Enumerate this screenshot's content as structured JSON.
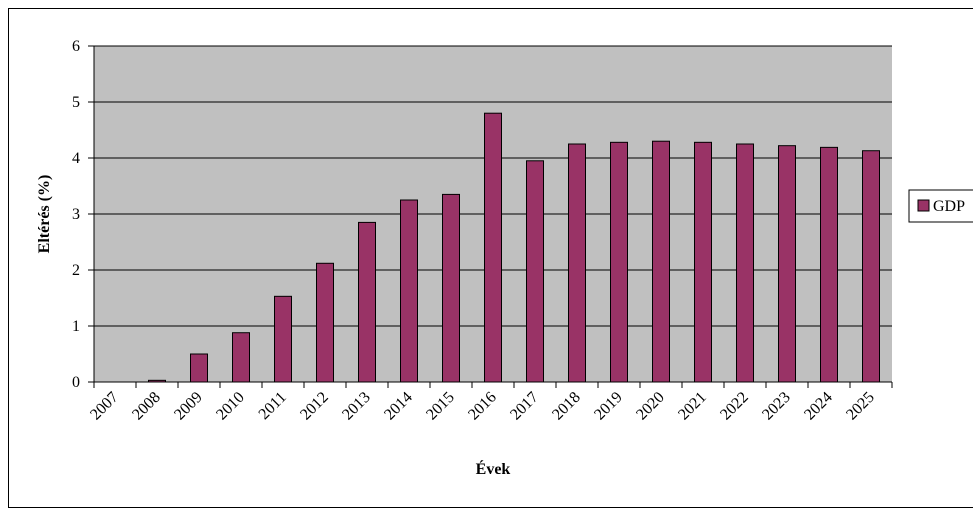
{
  "chart_data": {
    "type": "bar",
    "categories": [
      "2007",
      "2008",
      "2009",
      "2010",
      "2011",
      "2012",
      "2013",
      "2014",
      "2015",
      "2016",
      "2017",
      "2018",
      "2019",
      "2020",
      "2021",
      "2022",
      "2023",
      "2024",
      "2025"
    ],
    "series": [
      {
        "name": "GDP",
        "values": [
          0,
          0.03,
          0.5,
          0.88,
          1.53,
          2.12,
          2.85,
          3.25,
          3.35,
          4.8,
          3.95,
          4.25,
          4.28,
          4.3,
          4.28,
          4.25,
          4.22,
          4.19,
          4.13
        ]
      }
    ],
    "xlabel": "Évek",
    "ylabel": "Eltérés (%)",
    "ylim": [
      0,
      6
    ],
    "yticks": [
      "0",
      "1",
      "2",
      "3",
      "4",
      "5",
      "6"
    ],
    "grid": true,
    "legend_position": "right",
    "colors": {
      "bar": "#993366",
      "plot_background": "#c0c0c0",
      "gridline": "#000000"
    }
  }
}
